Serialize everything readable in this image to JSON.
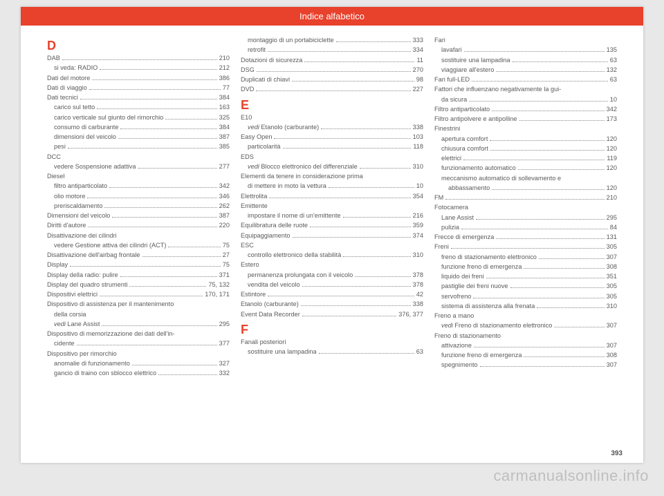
{
  "header": {
    "title": "Indice alfabetico"
  },
  "page_number": "393",
  "watermark": "carmanualsonline.info",
  "columns": [
    {
      "groups": [
        {
          "letter": "D",
          "entries": [
            {
              "t": "DAB",
              "p": "210",
              "i": 0
            },
            {
              "t": "si veda: RADIO",
              "p": "212",
              "i": 1
            },
            {
              "t": "Dati del motore",
              "p": "386",
              "i": 0
            },
            {
              "t": "Dati di viaggio",
              "p": "77",
              "i": 0
            },
            {
              "t": "Dati tecnici",
              "p": "384",
              "i": 0
            },
            {
              "t": "carico sul tetto",
              "p": "163",
              "i": 1
            },
            {
              "t": "carico verticale sul giunto del rimorchio",
              "p": "325",
              "i": 1
            },
            {
              "t": "consumo di carburante",
              "p": "384",
              "i": 1
            },
            {
              "t": "dimensioni del veicolo",
              "p": "387",
              "i": 1
            },
            {
              "t": "pesi",
              "p": "385",
              "i": 1
            },
            {
              "t": "DCC",
              "p": "",
              "i": 0,
              "nodots": true
            },
            {
              "t": "vedere Sospensione adattiva",
              "p": "277",
              "i": 1
            },
            {
              "t": "Diesel",
              "p": "",
              "i": 0,
              "nodots": true
            },
            {
              "t": "filtro antiparticolato",
              "p": "342",
              "i": 1
            },
            {
              "t": "olio motore",
              "p": "346",
              "i": 1
            },
            {
              "t": "preriscaldamento",
              "p": "262",
              "i": 1
            },
            {
              "t": "Dimensioni del veicolo",
              "p": "387",
              "i": 0
            },
            {
              "t": "Diritti d'autore",
              "p": "220",
              "i": 0
            },
            {
              "t": "Disattivazione dei cilindri",
              "p": "",
              "i": 0,
              "nodots": true
            },
            {
              "t": "vedere Gestione attiva dei cilindri (ACT)",
              "p": "75",
              "i": 1
            },
            {
              "t": "Disattivazione dell'airbag frontale",
              "p": "27",
              "i": 0
            },
            {
              "t": "Display",
              "p": "75",
              "i": 0
            },
            {
              "t": "Display della radio: pulire",
              "p": "371",
              "i": 0
            },
            {
              "t": "Display del quadro strumenti",
              "p": "75, 132",
              "i": 0
            },
            {
              "t": "Dispositivi elettrici",
              "p": "170, 171",
              "i": 0
            },
            {
              "t": "Dispositivo di assistenza per il mantenimento",
              "p": "",
              "i": 0,
              "nodots": true
            },
            {
              "t": "della corsia",
              "p": "",
              "i": 1,
              "nodots": true
            },
            {
              "pre": "vedi ",
              "t": "Lane Assist",
              "p": "295",
              "i": 1,
              "preItalic": true
            },
            {
              "t": "Dispositivo di memorizzazione dei dati dell'in-",
              "p": "",
              "i": 0,
              "nodots": true
            },
            {
              "t": "cidente",
              "p": "377",
              "i": 1
            },
            {
              "t": "Dispositivo per rimorchio",
              "p": "",
              "i": 0,
              "nodots": true
            },
            {
              "t": "anomalie di funzionamento",
              "p": "327",
              "i": 1
            },
            {
              "t": "gancio di traino con sblocco elettrico",
              "p": "332",
              "i": 1
            }
          ]
        }
      ]
    },
    {
      "groups": [
        {
          "letter": "",
          "entries": [
            {
              "t": "montaggio di un portabiciclette",
              "p": "333",
              "i": 1
            },
            {
              "t": "retrofit",
              "p": "334",
              "i": 1
            },
            {
              "t": "Dotazioni di sicurezza",
              "p": "11",
              "i": 0
            },
            {
              "t": "DSG",
              "p": "270",
              "i": 0
            },
            {
              "t": "Duplicati di chiavi",
              "p": "98",
              "i": 0
            },
            {
              "t": "DVD",
              "p": "227",
              "i": 0
            }
          ]
        },
        {
          "letter": "E",
          "entries": [
            {
              "t": "E10",
              "p": "",
              "i": 0,
              "nodots": true
            },
            {
              "pre": "vedi ",
              "t": "Etanolo (carburante)",
              "p": "338",
              "i": 1,
              "preItalic": true
            },
            {
              "t": "Easy Open",
              "p": "103",
              "i": 0
            },
            {
              "t": "particolarità",
              "p": "118",
              "i": 1
            },
            {
              "t": "EDS",
              "p": "",
              "i": 0,
              "nodots": true
            },
            {
              "pre": "vedi ",
              "t": "Blocco elettronico del differenziale",
              "p": "310",
              "i": 1,
              "preItalic": true
            },
            {
              "t": "Elementi da tenere in considerazione prima",
              "p": "",
              "i": 0,
              "nodots": true
            },
            {
              "t": "di mettere in moto la vettura",
              "p": "10",
              "i": 1
            },
            {
              "t": "Elettrolita",
              "p": "354",
              "i": 0
            },
            {
              "t": "Emittente",
              "p": "",
              "i": 0,
              "nodots": true
            },
            {
              "t": "impostare il nome di un'emittente",
              "p": "216",
              "i": 1
            },
            {
              "t": "Equilibratura delle ruote",
              "p": "359",
              "i": 0
            },
            {
              "t": "Equipaggiamento",
              "p": "374",
              "i": 0
            },
            {
              "t": "ESC",
              "p": "",
              "i": 0,
              "nodots": true
            },
            {
              "t": "controllo elettronico della stabilità",
              "p": "310",
              "i": 1
            },
            {
              "t": "Estero",
              "p": "",
              "i": 0,
              "nodots": true
            },
            {
              "t": "permanenza prolungata con il veicolo",
              "p": "378",
              "i": 1
            },
            {
              "t": "vendita del veicolo",
              "p": "378",
              "i": 1
            },
            {
              "t": "Estintore",
              "p": "42",
              "i": 0
            },
            {
              "t": "Etanolo (carburante)",
              "p": "338",
              "i": 0
            },
            {
              "t": "Event Data Recorder",
              "p": "376, 377",
              "i": 0
            }
          ]
        },
        {
          "letter": "F",
          "entries": [
            {
              "t": "Fanali posteriori",
              "p": "",
              "i": 0,
              "nodots": true
            },
            {
              "t": "sostituire una lampadina",
              "p": "63",
              "i": 1
            }
          ]
        }
      ]
    },
    {
      "groups": [
        {
          "letter": "",
          "entries": [
            {
              "t": "Fari",
              "p": "",
              "i": 0,
              "nodots": true
            },
            {
              "t": "lavafari",
              "p": "135",
              "i": 1
            },
            {
              "t": "sostituire una lampadina",
              "p": "63",
              "i": 1
            },
            {
              "t": "viaggiare all'estero",
              "p": "132",
              "i": 1
            },
            {
              "t": "Fari full-LED",
              "p": "63",
              "i": 0
            },
            {
              "t": "Fattori che influenzano negativamente la gui-",
              "p": "",
              "i": 0,
              "nodots": true
            },
            {
              "t": "da sicura",
              "p": "10",
              "i": 1
            },
            {
              "t": "Filtro antiparticolato",
              "p": "342",
              "i": 0
            },
            {
              "t": "Filtro antipolvere e antipolline",
              "p": "173",
              "i": 0
            },
            {
              "t": "Finestrini",
              "p": "",
              "i": 0,
              "nodots": true
            },
            {
              "t": "apertura comfort",
              "p": "120",
              "i": 1
            },
            {
              "t": "chiusura comfort",
              "p": "120",
              "i": 1
            },
            {
              "t": "elettrici",
              "p": "119",
              "i": 1
            },
            {
              "t": "funzionamento automatico",
              "p": "120",
              "i": 1
            },
            {
              "t": "meccanismo automatico di sollevamento e",
              "p": "",
              "i": 1,
              "nodots": true
            },
            {
              "t": "abbassamento",
              "p": "120",
              "i": 2
            },
            {
              "t": "FM",
              "p": "210",
              "i": 0
            },
            {
              "t": "Fotocamera",
              "p": "",
              "i": 0,
              "nodots": true
            },
            {
              "t": "Lane Assist",
              "p": "295",
              "i": 1
            },
            {
              "t": "pulizia",
              "p": "84",
              "i": 1
            },
            {
              "t": "Frecce di emergenza",
              "p": "131",
              "i": 0
            },
            {
              "t": "Freni",
              "p": "305",
              "i": 0
            },
            {
              "t": "freno di stazionamento elettronico",
              "p": "307",
              "i": 1
            },
            {
              "t": "funzione freno di emergenza",
              "p": "308",
              "i": 1
            },
            {
              "t": "liquido dei freni",
              "p": "351",
              "i": 1
            },
            {
              "t": "pastiglie dei freni nuove",
              "p": "305",
              "i": 1
            },
            {
              "t": "servofreno",
              "p": "305",
              "i": 1
            },
            {
              "t": "sistema di assistenza alla frenata",
              "p": "310",
              "i": 1
            },
            {
              "t": "Freno a mano",
              "p": "",
              "i": 0,
              "nodots": true
            },
            {
              "pre": "vedi ",
              "t": "Freno di stazionamento elettronico",
              "p": "307",
              "i": 1,
              "preItalic": true
            },
            {
              "t": "Freno di stazionamento",
              "p": "",
              "i": 0,
              "nodots": true
            },
            {
              "t": "attivazione",
              "p": "307",
              "i": 1
            },
            {
              "t": "funzione freno di emergenza",
              "p": "308",
              "i": 1
            },
            {
              "t": "spegnimento",
              "p": "307",
              "i": 1
            }
          ]
        }
      ]
    }
  ]
}
